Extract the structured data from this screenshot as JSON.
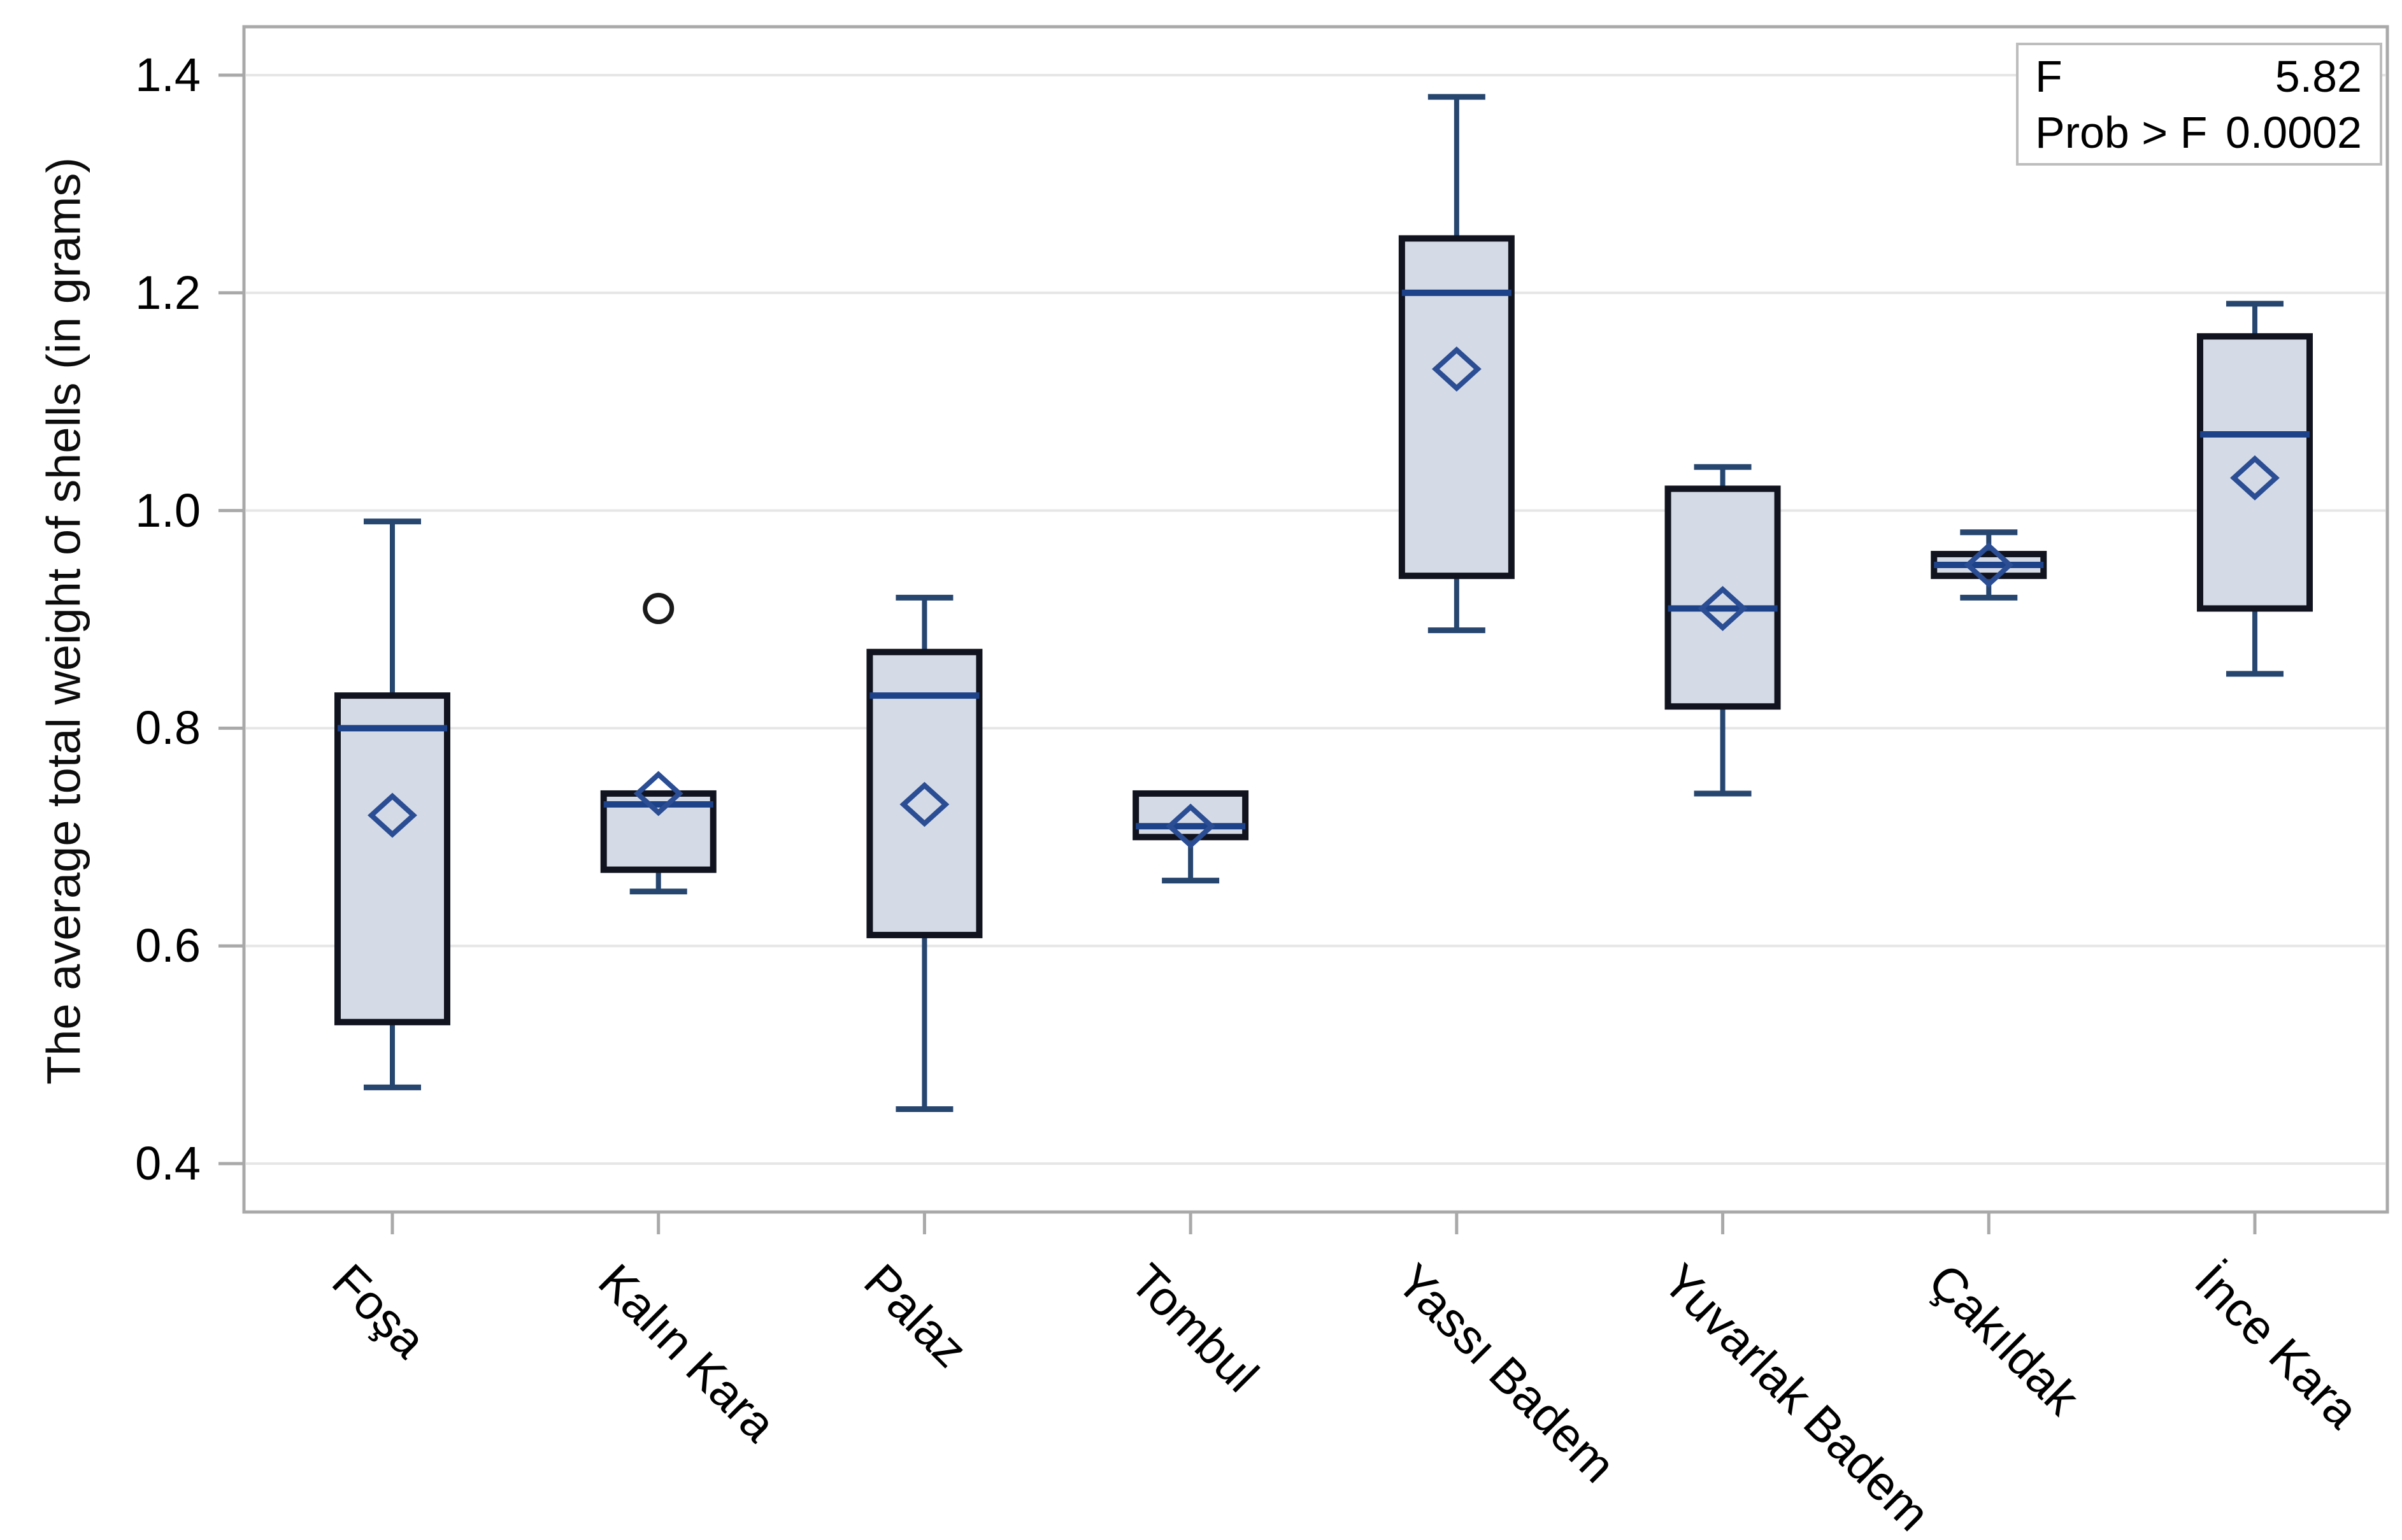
{
  "page": {
    "background": "#ffffff"
  },
  "chart_data": {
    "type": "boxplot",
    "title": "",
    "xlabel": "",
    "ylabel": "The average total weight of shells (in grams)",
    "ylim": [
      0.36,
      1.44
    ],
    "yticks": [
      "0.4",
      "0.6",
      "0.8",
      "1.0",
      "1.2",
      "1.4"
    ],
    "grid": true,
    "legend_position": "none",
    "categories": [
      "Foşa",
      "Kalın Kara",
      "Palaz",
      "Tombul",
      "Yassı Badem",
      "Yuvarlak Badem",
      "Çakıldak",
      "İnce Kara"
    ],
    "boxes": [
      {
        "category": "Foşa",
        "whisker_low": 0.47,
        "q1": 0.53,
        "median": 0.8,
        "q3": 0.83,
        "whisker_high": 0.99,
        "mean": 0.72,
        "outliers": []
      },
      {
        "category": "Kalın Kara",
        "whisker_low": 0.65,
        "q1": 0.67,
        "median": 0.73,
        "q3": 0.74,
        "whisker_high": 0.74,
        "mean": 0.74,
        "outliers": [
          0.91
        ]
      },
      {
        "category": "Palaz",
        "whisker_low": 0.45,
        "q1": 0.61,
        "median": 0.83,
        "q3": 0.87,
        "whisker_high": 0.92,
        "mean": 0.73,
        "outliers": []
      },
      {
        "category": "Tombul",
        "whisker_low": 0.66,
        "q1": 0.7,
        "median": 0.71,
        "q3": 0.74,
        "whisker_high": 0.74,
        "mean": 0.71,
        "outliers": []
      },
      {
        "category": "Yassı Badem",
        "whisker_low": 0.89,
        "q1": 0.94,
        "median": 1.2,
        "q3": 1.25,
        "whisker_high": 1.38,
        "mean": 1.13,
        "outliers": []
      },
      {
        "category": "Yuvarlak Badem",
        "whisker_low": 0.74,
        "q1": 0.82,
        "median": 0.91,
        "q3": 1.02,
        "whisker_high": 1.04,
        "mean": 0.91,
        "outliers": []
      },
      {
        "category": "Çakıldak",
        "whisker_low": 0.92,
        "q1": 0.94,
        "median": 0.95,
        "q3": 0.96,
        "whisker_high": 0.98,
        "mean": 0.95,
        "outliers": []
      },
      {
        "category": "İnce Kara",
        "whisker_low": 0.85,
        "q1": 0.91,
        "median": 1.07,
        "q3": 1.16,
        "whisker_high": 1.19,
        "mean": 1.03,
        "outliers": []
      }
    ],
    "stats_box": {
      "rows": [
        {
          "label": "F",
          "value": "5.82"
        },
        {
          "label": "Prob > F",
          "value": "0.0002"
        }
      ]
    }
  },
  "colors": {
    "box_fill": "#d5dbe6",
    "box_border": "#11141f",
    "median_line": "#1d4289",
    "whisker": "#27466f",
    "mean_marker": "#2a4d94",
    "outlier": "#1a1a1a",
    "gridline": "#e6e6e6",
    "plot_border": "#a9a9a9",
    "tick": "#a9a9a9",
    "axis_text": "#000000",
    "stats_border": "#bdbdbd"
  }
}
